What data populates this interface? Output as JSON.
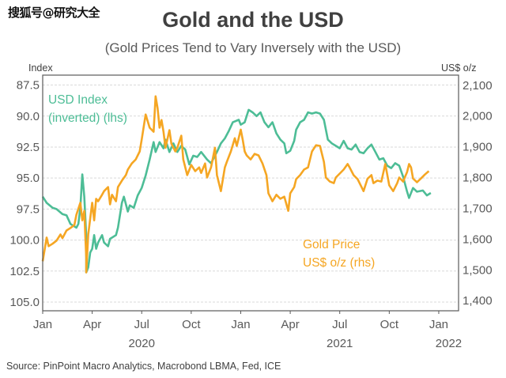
{
  "watermark": "搜狐号@研究大全",
  "source": "Source: PinPoint Macro Analytics, Macrobond LBMA, Fed, ICE",
  "chart_data": {
    "type": "line",
    "title": "Gold and the USD",
    "subtitle": "(Gold Prices Tend to Vary Inversely with the USD)",
    "grid": true,
    "colors": {
      "usd": "#4dbd96",
      "gold": "#f5a623",
      "grid": "#d9d9d9",
      "axis": "#595959"
    },
    "left_axis": {
      "title": "Index",
      "inverted": true,
      "ylim": [
        86.7,
        105.7
      ],
      "ticks": [
        87.5,
        90.0,
        92.5,
        95.0,
        97.5,
        100.0,
        102.5,
        105.0
      ],
      "tick_labels": [
        "87.5",
        "90.0",
        "92.5",
        "95.0",
        "97.5",
        "100.0",
        "102.5",
        "105.0"
      ]
    },
    "right_axis": {
      "title": "US$ o/z",
      "ylim": [
        1367,
        2133
      ],
      "ticks": [
        2100,
        2000,
        1900,
        1800,
        1700,
        1600,
        1500,
        1400
      ],
      "tick_labels": [
        "2,100",
        "2,000",
        "1,900",
        "1,800",
        "1,700",
        "1,600",
        "1,500",
        "1,400"
      ]
    },
    "x_axis": {
      "xlim": [
        2020.0,
        2022.1
      ],
      "ticks": [
        2020.0,
        2020.25,
        2020.5,
        2020.75,
        2021.0,
        2021.25,
        2021.5,
        2021.75,
        2022.0
      ],
      "tick_labels": [
        "Jan",
        "Apr",
        "Jul",
        "Oct",
        "Jan",
        "Apr",
        "Jul",
        "Oct",
        "Jan"
      ],
      "year_labels": [
        {
          "x": 2020.5,
          "label": "2020"
        },
        {
          "x": 2021.5,
          "label": "2021"
        },
        {
          "x": 2022.05,
          "label": "2022"
        }
      ]
    },
    "annotations": {
      "usd": [
        "USD Index",
        "(inverted) (lhs)"
      ],
      "gold": [
        "Gold Price",
        "US$ o/z (rhs)"
      ]
    },
    "series": [
      {
        "name": "USD Index (inverted) (lhs)",
        "axis": "left",
        "x": [
          2020.0,
          2020.02,
          2020.05,
          2020.07,
          2020.1,
          2020.12,
          2020.14,
          2020.17,
          2020.18,
          2020.19,
          2020.2,
          2020.21,
          2020.22,
          2020.22,
          2020.23,
          2020.24,
          2020.25,
          2020.26,
          2020.27,
          2020.28,
          2020.3,
          2020.31,
          2020.33,
          2020.34,
          2020.37,
          2020.38,
          2020.4,
          2020.41,
          2020.43,
          2020.44,
          2020.46,
          2020.48,
          2020.5,
          2020.52,
          2020.54,
          2020.56,
          2020.57,
          2020.59,
          2020.61,
          2020.62,
          2020.64,
          2020.66,
          2020.68,
          2020.7,
          2020.72,
          2020.74,
          2020.76,
          2020.78,
          2020.8,
          2020.83,
          2020.85,
          2020.88,
          2020.9,
          2020.92,
          2020.94,
          2020.96,
          2020.99,
          2021.0,
          2021.02,
          2021.04,
          2021.06,
          2021.08,
          2021.1,
          2021.12,
          2021.14,
          2021.16,
          2021.18,
          2021.2,
          2021.22,
          2021.23,
          2021.25,
          2021.27,
          2021.28,
          2021.3,
          2021.32,
          2021.34,
          2021.36,
          2021.38,
          2021.4,
          2021.42,
          2021.44,
          2021.46,
          2021.48,
          2021.5,
          2021.52,
          2021.54,
          2021.56,
          2021.58,
          2021.6,
          2021.62,
          2021.64,
          2021.66,
          2021.68,
          2021.7,
          2021.72,
          2021.74,
          2021.76,
          2021.78,
          2021.8,
          2021.82,
          2021.84,
          2021.85,
          2021.87,
          2021.89,
          2021.92,
          2021.94,
          2021.96
        ],
        "y": [
          96.5,
          97.0,
          97.4,
          97.5,
          97.9,
          98.0,
          98.7,
          99.0,
          98.7,
          97.4,
          94.7,
          96.5,
          99.7,
          102.6,
          102.2,
          101.0,
          100.7,
          99.6,
          100.7,
          100.2,
          99.6,
          100.2,
          100.5,
          99.9,
          99.6,
          99.0,
          97.0,
          96.5,
          97.7,
          97.2,
          97.4,
          96.4,
          95.8,
          94.8,
          93.5,
          92.1,
          92.9,
          92.1,
          92.6,
          91.9,
          92.9,
          92.2,
          92.9,
          92.4,
          92.7,
          93.9,
          93.2,
          93.3,
          92.9,
          93.5,
          93.8,
          92.9,
          92.2,
          91.8,
          91.2,
          90.5,
          90.3,
          90.7,
          90.5,
          89.5,
          89.7,
          90.0,
          89.7,
          90.5,
          90.9,
          90.5,
          91.4,
          91.9,
          92.2,
          93.0,
          92.8,
          92.0,
          91.1,
          90.5,
          90.3,
          89.7,
          89.8,
          89.7,
          89.8,
          90.3,
          91.9,
          92.2,
          92.4,
          92.6,
          92.0,
          92.6,
          92.7,
          92.3,
          92.9,
          93.0,
          92.6,
          92.3,
          92.9,
          93.5,
          93.4,
          94.0,
          94.2,
          93.8,
          94.0,
          94.9,
          96.1,
          96.6,
          95.8,
          96.1,
          96.0,
          96.4,
          96.2
        ]
      },
      {
        "name": "Gold Price US$ o/z (rhs)",
        "axis": "right",
        "x": [
          2020.0,
          2020.02,
          2020.03,
          2020.05,
          2020.07,
          2020.09,
          2020.1,
          2020.12,
          2020.14,
          2020.16,
          2020.17,
          2020.19,
          2020.2,
          2020.21,
          2020.22,
          2020.22,
          2020.23,
          2020.25,
          2020.26,
          2020.27,
          2020.28,
          2020.3,
          2020.31,
          2020.33,
          2020.34,
          2020.35,
          2020.37,
          2020.38,
          2020.4,
          2020.42,
          2020.43,
          2020.45,
          2020.47,
          2020.49,
          2020.5,
          2020.52,
          2020.54,
          2020.56,
          2020.57,
          2020.58,
          2020.59,
          2020.6,
          2020.61,
          2020.62,
          2020.64,
          2020.65,
          2020.67,
          2020.68,
          2020.7,
          2020.71,
          2020.73,
          2020.75,
          2020.77,
          2020.79,
          2020.8,
          2020.82,
          2020.83,
          2020.85,
          2020.87,
          2020.88,
          2020.9,
          2020.92,
          2020.93,
          2020.95,
          2020.97,
          2020.98,
          2021.0,
          2021.01,
          2021.02,
          2021.03,
          2021.05,
          2021.07,
          2021.09,
          2021.11,
          2021.13,
          2021.14,
          2021.16,
          2021.18,
          2021.2,
          2021.22,
          2021.24,
          2021.25,
          2021.27,
          2021.28,
          2021.3,
          2021.32,
          2021.34,
          2021.36,
          2021.38,
          2021.4,
          2021.42,
          2021.43,
          2021.45,
          2021.47,
          2021.48,
          2021.5,
          2021.52,
          2021.54,
          2021.55,
          2021.57,
          2021.59,
          2021.61,
          2021.62,
          2021.64,
          2021.66,
          2021.67,
          2021.69,
          2021.71,
          2021.73,
          2021.75,
          2021.77,
          2021.79,
          2021.8,
          2021.82,
          2021.83,
          2021.84,
          2021.85,
          2021.86,
          2021.87,
          2021.89,
          2021.91,
          2021.93,
          2021.95
        ],
        "y": [
          1528,
          1605,
          1577,
          1585,
          1595,
          1615,
          1603,
          1628,
          1636,
          1646,
          1679,
          1718,
          1661,
          1692,
          1538,
          1492,
          1615,
          1718,
          1661,
          1731,
          1723,
          1744,
          1756,
          1769,
          1713,
          1744,
          1723,
          1769,
          1790,
          1808,
          1826,
          1846,
          1859,
          1885,
          1923,
          2005,
          1962,
          1949,
          2064,
          2026,
          1962,
          1987,
          1949,
          1897,
          1954,
          1910,
          1885,
          1897,
          1936,
          1859,
          1808,
          1841,
          1821,
          1833,
          1815,
          1846,
          1800,
          1833,
          1897,
          1808,
          1756,
          1833,
          1851,
          1885,
          1928,
          1903,
          1956,
          1923,
          1885,
          1872,
          1859,
          1877,
          1872,
          1846,
          1808,
          1749,
          1723,
          1744,
          1731,
          1738,
          1692,
          1749,
          1769,
          1795,
          1808,
          1826,
          1833,
          1885,
          1905,
          1903,
          1851,
          1800,
          1787,
          1782,
          1800,
          1813,
          1826,
          1844,
          1833,
          1808,
          1795,
          1769,
          1756,
          1796,
          1808,
          1782,
          1790,
          1787,
          1844,
          1775,
          1756,
          1782,
          1800,
          1787,
          1803,
          1818,
          1844,
          1833,
          1797,
          1785,
          1797,
          1810,
          1821
        ]
      }
    ]
  }
}
